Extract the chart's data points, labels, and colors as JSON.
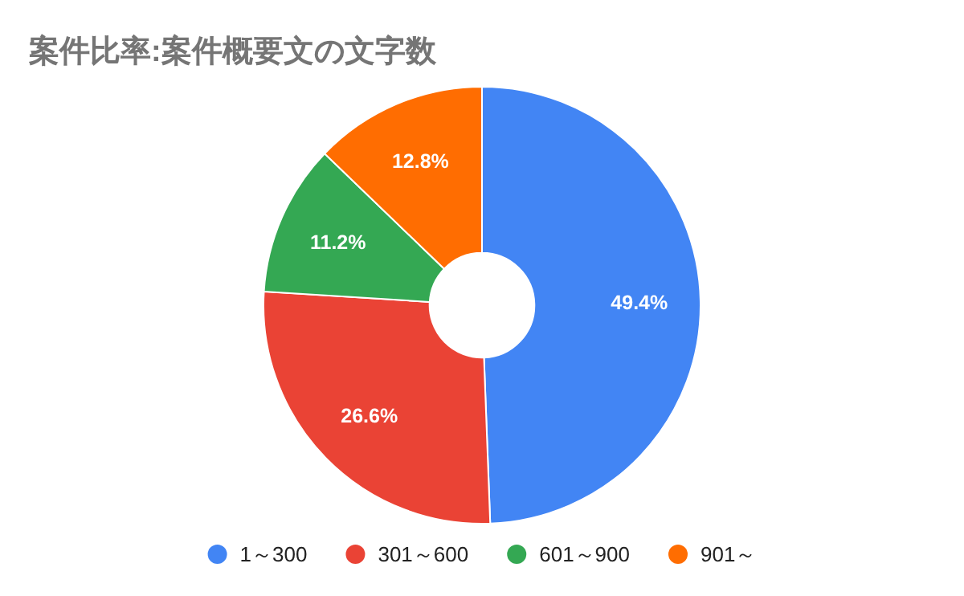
{
  "chart_data": {
    "type": "donut",
    "title": "案件比率:案件概要文の文字数",
    "categories": [
      "1～300",
      "301～600",
      "601～900",
      "901～"
    ],
    "values": [
      49.4,
      26.6,
      11.2,
      12.8
    ],
    "value_labels": [
      "49.4%",
      "26.6%",
      "11.2%",
      "12.8%"
    ],
    "colors": [
      "#4285f4",
      "#ea4335",
      "#34a853",
      "#ff6d01"
    ],
    "legend": "bottom"
  }
}
